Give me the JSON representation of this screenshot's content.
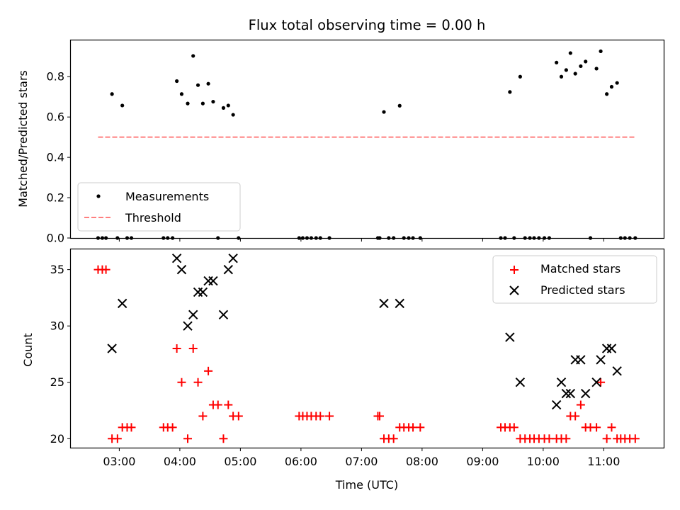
{
  "chart_data": {
    "title": "Flux total observing time = 0.00 h",
    "xlabel": "Time (UTC)",
    "x_ticks": [
      "03:00",
      "04:00",
      "05:00",
      "06:00",
      "07:00",
      "08:00",
      "09:00",
      "10:00",
      "11:00"
    ],
    "x_tick_hours": [
      3,
      4,
      5,
      6,
      7,
      8,
      9,
      10,
      11
    ],
    "xlim_hours": [
      2.2,
      11.99
    ],
    "panels": [
      {
        "type": "scatter",
        "ylabel": "Matched/Predicted stars",
        "ylim": [
          0,
          0.98
        ],
        "y_ticks": [
          0.0,
          0.2,
          0.4,
          0.6,
          0.8
        ],
        "y_tick_labels": [
          "0.0",
          "0.2",
          "0.4",
          "0.6",
          "0.8"
        ],
        "legend_position": "lower-left",
        "series": [
          {
            "name": "Measurements",
            "marker": "dot",
            "color": "#000000",
            "points": [
              [
                2.65,
                0
              ],
              [
                2.72,
                0
              ],
              [
                2.78,
                0
              ],
              [
                2.88,
                0.714
              ],
              [
                2.97,
                0
              ],
              [
                3.05,
                0.657
              ],
              [
                3.13,
                0
              ],
              [
                3.2,
                0
              ],
              [
                3.73,
                0
              ],
              [
                3.8,
                0
              ],
              [
                3.88,
                0
              ],
              [
                3.95,
                0.778
              ],
              [
                4.03,
                0.714
              ],
              [
                4.13,
                0.667
              ],
              [
                4.22,
                0.903
              ],
              [
                4.3,
                0.758
              ],
              [
                4.38,
                0.667
              ],
              [
                4.47,
                0.765
              ],
              [
                4.55,
                0.676
              ],
              [
                4.63,
                0
              ],
              [
                4.72,
                0.645
              ],
              [
                4.8,
                0.657
              ],
              [
                4.88,
                0.611
              ],
              [
                4.97,
                0
              ],
              [
                5.97,
                0
              ],
              [
                6.03,
                0
              ],
              [
                6.1,
                0
              ],
              [
                6.17,
                0
              ],
              [
                6.25,
                0
              ],
              [
                6.32,
                0
              ],
              [
                6.47,
                0
              ],
              [
                7.27,
                0
              ],
              [
                7.3,
                0
              ],
              [
                7.37,
                0.625
              ],
              [
                7.45,
                0
              ],
              [
                7.53,
                0
              ],
              [
                7.63,
                0.656
              ],
              [
                7.7,
                0
              ],
              [
                7.78,
                0
              ],
              [
                7.85,
                0
              ],
              [
                7.97,
                0
              ],
              [
                9.3,
                0
              ],
              [
                9.37,
                0
              ],
              [
                9.45,
                0.724
              ],
              [
                9.52,
                0
              ],
              [
                9.62,
                0.8
              ],
              [
                9.7,
                0
              ],
              [
                9.78,
                0
              ],
              [
                9.85,
                0
              ],
              [
                9.93,
                0
              ],
              [
                10.02,
                0
              ],
              [
                10.1,
                0
              ],
              [
                10.22,
                0.87
              ],
              [
                10.3,
                0.8
              ],
              [
                10.38,
                0.833
              ],
              [
                10.45,
                0.917
              ],
              [
                10.53,
                0.815
              ],
              [
                10.62,
                0.852
              ],
              [
                10.7,
                0.875
              ],
              [
                10.78,
                0
              ],
              [
                10.88,
                0.84
              ],
              [
                10.95,
                0.926
              ],
              [
                11.05,
                0.714
              ],
              [
                11.13,
                0.75
              ],
              [
                11.22,
                0.769
              ],
              [
                11.28,
                0
              ],
              [
                11.35,
                0
              ],
              [
                11.43,
                0
              ],
              [
                11.52,
                0
              ]
            ]
          },
          {
            "name": "Threshold",
            "marker": "dashed-line",
            "color": "#ff7f7f",
            "x_range_hours": [
              2.65,
              11.52
            ],
            "y": 0.5
          }
        ]
      },
      {
        "type": "scatter",
        "ylabel": "Count",
        "ylim": [
          19.2,
          36.8
        ],
        "y_ticks": [
          20,
          25,
          30,
          35
        ],
        "y_tick_labels": [
          "20",
          "25",
          "30",
          "35"
        ],
        "legend_position": "upper-right",
        "series": [
          {
            "name": "Matched stars",
            "marker": "plus",
            "color": "#ff0000",
            "points": [
              [
                2.65,
                35
              ],
              [
                2.72,
                35
              ],
              [
                2.78,
                35
              ],
              [
                2.88,
                20
              ],
              [
                2.97,
                20
              ],
              [
                3.05,
                21
              ],
              [
                3.13,
                21
              ],
              [
                3.2,
                21
              ],
              [
                3.73,
                21
              ],
              [
                3.8,
                21
              ],
              [
                3.88,
                21
              ],
              [
                3.95,
                28
              ],
              [
                4.03,
                25
              ],
              [
                4.13,
                20
              ],
              [
                4.22,
                28
              ],
              [
                4.3,
                25
              ],
              [
                4.38,
                22
              ],
              [
                4.47,
                26
              ],
              [
                4.55,
                23
              ],
              [
                4.63,
                23
              ],
              [
                4.72,
                20
              ],
              [
                4.8,
                23
              ],
              [
                4.88,
                22
              ],
              [
                4.97,
                22
              ],
              [
                5.97,
                22
              ],
              [
                6.03,
                22
              ],
              [
                6.1,
                22
              ],
              [
                6.17,
                22
              ],
              [
                6.25,
                22
              ],
              [
                6.32,
                22
              ],
              [
                6.47,
                22
              ],
              [
                7.27,
                22
              ],
              [
                7.3,
                22
              ],
              [
                7.37,
                20
              ],
              [
                7.45,
                20
              ],
              [
                7.53,
                20
              ],
              [
                7.63,
                21
              ],
              [
                7.7,
                21
              ],
              [
                7.78,
                21
              ],
              [
                7.85,
                21
              ],
              [
                7.97,
                21
              ],
              [
                9.3,
                21
              ],
              [
                9.37,
                21
              ],
              [
                9.45,
                21
              ],
              [
                9.52,
                21
              ],
              [
                9.62,
                20
              ],
              [
                9.7,
                20
              ],
              [
                9.78,
                20
              ],
              [
                9.85,
                20
              ],
              [
                9.93,
                20
              ],
              [
                10.02,
                20
              ],
              [
                10.1,
                20
              ],
              [
                10.22,
                20
              ],
              [
                10.3,
                20
              ],
              [
                10.38,
                20
              ],
              [
                10.45,
                22
              ],
              [
                10.53,
                22
              ],
              [
                10.62,
                23
              ],
              [
                10.7,
                21
              ],
              [
                10.78,
                21
              ],
              [
                10.88,
                21
              ],
              [
                10.95,
                25
              ],
              [
                11.05,
                20
              ],
              [
                11.13,
                21
              ],
              [
                11.22,
                20
              ],
              [
                11.28,
                20
              ],
              [
                11.35,
                20
              ],
              [
                11.43,
                20
              ],
              [
                11.52,
                20
              ]
            ]
          },
          {
            "name": "Predicted stars",
            "marker": "x",
            "color": "#000000",
            "points": [
              [
                2.88,
                28
              ],
              [
                3.05,
                32
              ],
              [
                3.95,
                36
              ],
              [
                4.03,
                35
              ],
              [
                4.13,
                30
              ],
              [
                4.22,
                31
              ],
              [
                4.3,
                33
              ],
              [
                4.38,
                33
              ],
              [
                4.47,
                34
              ],
              [
                4.55,
                34
              ],
              [
                4.72,
                31
              ],
              [
                4.8,
                35
              ],
              [
                4.88,
                36
              ],
              [
                7.37,
                32
              ],
              [
                7.63,
                32
              ],
              [
                9.45,
                29
              ],
              [
                9.62,
                25
              ],
              [
                10.22,
                23
              ],
              [
                10.3,
                25
              ],
              [
                10.38,
                24
              ],
              [
                10.45,
                24
              ],
              [
                10.53,
                27
              ],
              [
                10.62,
                27
              ],
              [
                10.7,
                24
              ],
              [
                10.88,
                25
              ],
              [
                10.95,
                27
              ],
              [
                11.05,
                28
              ],
              [
                11.13,
                28
              ],
              [
                11.22,
                26
              ]
            ]
          }
        ]
      }
    ]
  }
}
